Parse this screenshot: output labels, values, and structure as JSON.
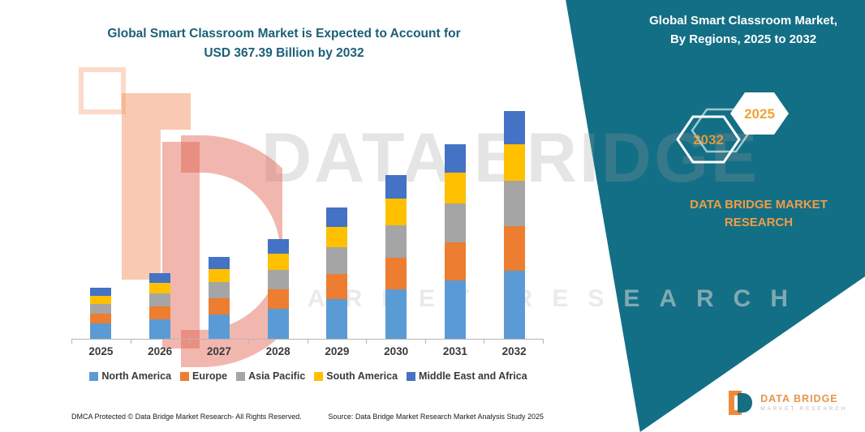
{
  "header": {
    "title_line1": "Global Smart Classroom Market is Expected to Account for",
    "title_line2": "USD 367.39 Billion by 2032",
    "banner_line1": "Global Smart Classroom Market,",
    "banner_line2": "By Regions, 2025 to 2032"
  },
  "badges": {
    "left_year": "2032",
    "right_year": "2025"
  },
  "brand": {
    "name_line1": "DATA BRIDGE MARKET",
    "name_line2": "RESEARCH",
    "watermark_line1": "DATA BRIDGE",
    "watermark_line2": "MARKET RESEARCH",
    "logo_text": "DATA BRIDGE",
    "logo_subtext": "MARKET RESEARCH"
  },
  "footer": {
    "dmca": "DMCA Protected © Data Bridge Market Research- All Rights Reserved.",
    "source": "Source: Data Bridge Market Research Market Analysis Study 2025"
  },
  "colors": {
    "teal_band": "#136F85",
    "orange_accent": "#EF9D45",
    "title_text": "#1A5F78"
  },
  "chart_data": {
    "type": "bar",
    "stacked": true,
    "title": "Global Smart Classroom Market is Expected to Account for USD 367.39 Billion by 2032",
    "unit": "USD Billion",
    "categories": [
      "2025",
      "2026",
      "2027",
      "2028",
      "2029",
      "2030",
      "2031",
      "2032"
    ],
    "series": [
      {
        "name": "North America",
        "color": "#5B9BD5",
        "values": [
          24.6,
          31.8,
          39.6,
          48.3,
          63.6,
          79.2,
          94.2,
          110.2
        ]
      },
      {
        "name": "Europe",
        "color": "#ED7D31",
        "values": [
          16.0,
          20.7,
          25.7,
          31.4,
          41.3,
          51.5,
          61.2,
          71.6
        ]
      },
      {
        "name": "Asia Pacific",
        "color": "#A5A5A5",
        "values": [
          16.4,
          21.2,
          26.4,
          32.2,
          42.4,
          52.8,
          62.8,
          73.5
        ]
      },
      {
        "name": "South America",
        "color": "#FFC000",
        "values": [
          13.1,
          17.0,
          21.1,
          25.8,
          33.9,
          42.2,
          50.2,
          58.8
        ]
      },
      {
        "name": "Middle East and Africa",
        "color": "#4472C4",
        "values": [
          11.9,
          15.4,
          19.1,
          23.3,
          30.7,
          38.3,
          45.5,
          53.3
        ]
      }
    ],
    "totals_estimated": [
      82,
      106,
      132,
      161,
      212,
      264,
      314,
      367.39
    ],
    "ylim": [
      0,
      380
    ],
    "xlabel": "",
    "ylabel": "",
    "grid": false,
    "legend_position": "bottom"
  }
}
